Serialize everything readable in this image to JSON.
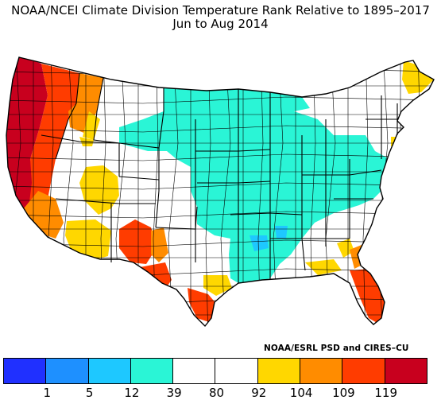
{
  "title": {
    "line1": "NOAA/NCEI Climate Division Temperature Rank Relative to 1895–2017",
    "line2": "Jun to Aug 2014"
  },
  "credit": "NOAA/ESRL PSD and CIRES–CU",
  "legend": {
    "colors": [
      "#2030ff",
      "#1e90ff",
      "#1ec8ff",
      "#2af5d6",
      "#ffffff",
      "#ffffff",
      "#ffd700",
      "#ff8c00",
      "#ff3c00",
      "#c8001e"
    ],
    "ticks": [
      "1",
      "5",
      "12",
      "39",
      "80",
      "92",
      "104",
      "109",
      "119"
    ]
  },
  "map": {
    "colors": {
      "much_above": "#c8001e",
      "well_above": "#ff3c00",
      "above": "#ff8c00",
      "slightly_above": "#ffd700",
      "near_normal": "#ffffff",
      "below": "#2af5d6",
      "well_below": "#1ec8ff",
      "border": "#000000"
    }
  }
}
